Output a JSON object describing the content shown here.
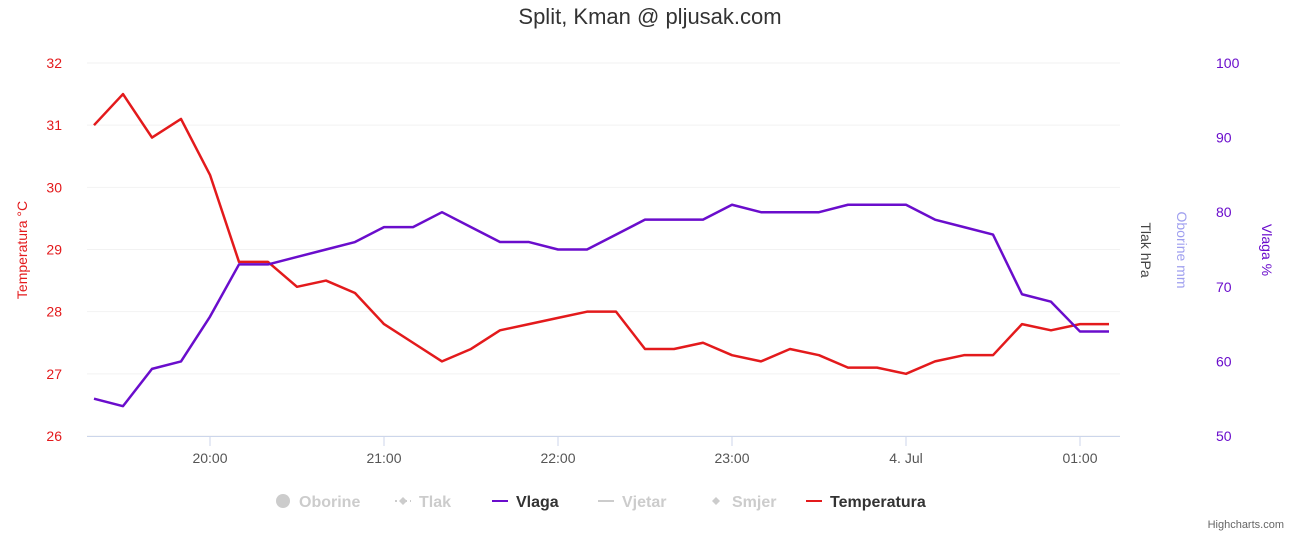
{
  "chart_data": {
    "type": "line",
    "title": "Split, Kman @ pljusak.com",
    "x_minutes_from_start": [
      0,
      10,
      20,
      30,
      40,
      50,
      60,
      70,
      80,
      90,
      100,
      110,
      120,
      130,
      140,
      150,
      160,
      170,
      180,
      190,
      200,
      210,
      220,
      230,
      240,
      250,
      260,
      270,
      280,
      290,
      300,
      310,
      320,
      330,
      340,
      350
    ],
    "x_start": "19:20",
    "x_ticks": [
      {
        "label": "20:00",
        "minute": 40
      },
      {
        "label": "21:00",
        "minute": 100
      },
      {
        "label": "22:00",
        "minute": 160
      },
      {
        "label": "23:00",
        "minute": 220
      },
      {
        "label": "4. Jul",
        "minute": 280
      },
      {
        "label": "01:00",
        "minute": 340
      }
    ],
    "series": [
      {
        "name": "Temperatura",
        "axis": "left",
        "color": "#e31a1c",
        "values": [
          31.0,
          31.5,
          30.8,
          31.1,
          30.2,
          28.8,
          28.8,
          28.4,
          28.5,
          28.3,
          27.8,
          27.5,
          27.2,
          27.4,
          27.7,
          27.8,
          27.9,
          28.0,
          28.0,
          27.4,
          27.4,
          27.5,
          27.3,
          27.2,
          27.4,
          27.3,
          27.1,
          27.1,
          27.0,
          27.2,
          27.3,
          27.3,
          27.8,
          27.7,
          27.8,
          27.8
        ]
      },
      {
        "name": "Vlaga",
        "axis": "right",
        "color": "#6a0dcc",
        "values": [
          55,
          54,
          59,
          60,
          66,
          73,
          73,
          74,
          75,
          76,
          78,
          78,
          80,
          78,
          76,
          76,
          75,
          75,
          77,
          79,
          79,
          79,
          81,
          80,
          80,
          80,
          81,
          81,
          81,
          79,
          78,
          77,
          69,
          68,
          64,
          64
        ]
      }
    ],
    "left_axis": {
      "title": "Temperatura °C",
      "ylim": [
        26,
        32
      ],
      "ticks": [
        "26",
        "27",
        "28",
        "29",
        "30",
        "31",
        "32"
      ],
      "color": "#e31a1c"
    },
    "right_axes": [
      {
        "title": "Tlak hPa",
        "color": "#444444"
      },
      {
        "title": "Oborine mm",
        "color": "#9f9fef"
      },
      {
        "title": "Vlaga %",
        "ylim": [
          50,
          100
        ],
        "ticks": [
          "50",
          "60",
          "70",
          "80",
          "90",
          "100"
        ],
        "color": "#6a0dcc"
      }
    ],
    "legend": {
      "placement": "bottom",
      "items": [
        {
          "name": "Oborine",
          "active": false,
          "symbol": "circle"
        },
        {
          "name": "Tlak",
          "active": false,
          "symbol": "diamond-line"
        },
        {
          "name": "Vlaga",
          "active": true,
          "symbol": "line",
          "color": "#6a0dcc"
        },
        {
          "name": "Vjetar",
          "active": false,
          "symbol": "line"
        },
        {
          "name": "Smjer",
          "active": false,
          "symbol": "diamond"
        },
        {
          "name": "Temperatura",
          "active": true,
          "symbol": "line",
          "color": "#e31a1c"
        }
      ]
    },
    "grid": true
  },
  "credit": "Highcharts.com"
}
